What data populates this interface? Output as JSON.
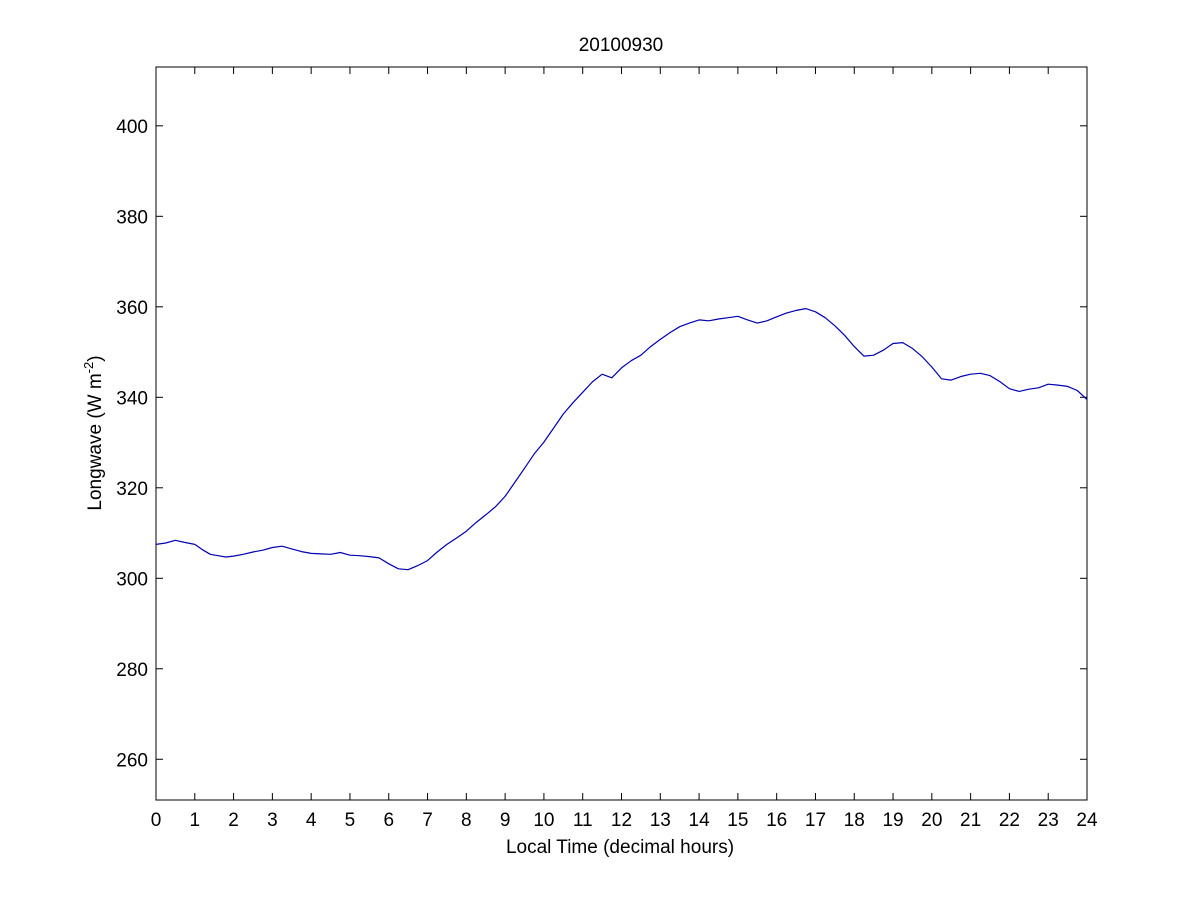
{
  "chart_data": {
    "type": "line",
    "title": "20100930",
    "xlabel": "Local Time (decimal hours)",
    "ylabel": "Longwave (W m",
    "ylabel_sup": "-2",
    "ylabel_close": ")",
    "xlim": [
      0,
      24
    ],
    "ylim": [
      251,
      413
    ],
    "xticks": [
      0,
      1,
      2,
      3,
      4,
      5,
      6,
      7,
      8,
      9,
      10,
      11,
      12,
      13,
      14,
      15,
      16,
      17,
      18,
      19,
      20,
      21,
      22,
      23,
      24
    ],
    "yticks": [
      260,
      280,
      300,
      320,
      340,
      360,
      380,
      400
    ],
    "grid": false,
    "series": [
      {
        "color": "#0000b0",
        "x": [
          0,
          0.25,
          0.5,
          0.75,
          1,
          1.2,
          1.4,
          1.6,
          1.8,
          2,
          2.25,
          2.5,
          2.75,
          3,
          3.25,
          3.5,
          3.75,
          4,
          4.25,
          4.5,
          4.75,
          5,
          5.25,
          5.5,
          5.75,
          6,
          6.25,
          6.5,
          6.75,
          7,
          7.25,
          7.5,
          7.75,
          8,
          8.25,
          8.5,
          8.75,
          9,
          9.25,
          9.5,
          9.75,
          10,
          10.25,
          10.5,
          10.75,
          11,
          11.25,
          11.5,
          11.75,
          12,
          12.25,
          12.5,
          12.75,
          13,
          13.25,
          13.5,
          13.75,
          14,
          14.25,
          14.5,
          14.75,
          15,
          15.25,
          15.5,
          15.75,
          16,
          16.25,
          16.5,
          16.75,
          17,
          17.25,
          17.5,
          17.75,
          18,
          18.25,
          18.5,
          18.75,
          19,
          19.25,
          19.5,
          19.75,
          20,
          20.25,
          20.5,
          20.75,
          21,
          21.25,
          21.5,
          21.75,
          22,
          22.25,
          22.5,
          22.75,
          23,
          23.25,
          23.5,
          23.75,
          24
        ],
        "y": [
          307.5,
          307.8,
          308.4,
          307.9,
          307.5,
          306.3,
          305.3,
          305.0,
          304.7,
          304.9,
          305.3,
          305.8,
          306.2,
          306.8,
          307.1,
          306.5,
          305.9,
          305.5,
          305.4,
          305.3,
          305.7,
          305.1,
          305.0,
          304.8,
          304.5,
          303.2,
          302.1,
          301.9,
          302.8,
          303.9,
          305.8,
          307.5,
          308.9,
          310.4,
          312.3,
          314.0,
          315.8,
          318.1,
          321.2,
          324.3,
          327.5,
          330.1,
          333.2,
          336.3,
          338.8,
          341.1,
          343.4,
          345.1,
          344.3,
          346.5,
          348.1,
          349.3,
          351.2,
          352.8,
          354.3,
          355.6,
          356.4,
          357.1,
          356.9,
          357.3,
          357.6,
          357.9,
          357.1,
          356.4,
          356.9,
          357.8,
          358.6,
          359.2,
          359.6,
          358.9,
          357.6,
          355.8,
          353.7,
          351.2,
          349.1,
          349.3,
          350.4,
          351.9,
          352.1,
          350.8,
          349.0,
          346.7,
          344.1,
          343.8,
          344.6,
          345.1,
          345.3,
          344.8,
          343.5,
          341.9,
          341.3,
          341.8,
          342.1,
          342.9,
          342.7,
          342.4,
          341.5,
          339.5
        ]
      }
    ]
  }
}
